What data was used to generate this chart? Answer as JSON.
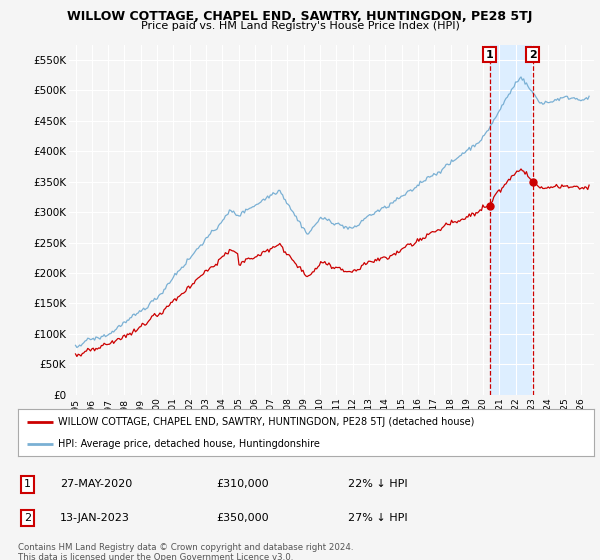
{
  "title": "WILLOW COTTAGE, CHAPEL END, SAWTRY, HUNTINGDON, PE28 5TJ",
  "subtitle": "Price paid vs. HM Land Registry's House Price Index (HPI)",
  "ylabel_ticks": [
    0,
    50000,
    100000,
    150000,
    200000,
    250000,
    300000,
    350000,
    400000,
    450000,
    500000,
    550000
  ],
  "ylim": [
    0,
    575000
  ],
  "background_color": "#f5f5f5",
  "plot_bg_color": "#f5f5f5",
  "red_line_color": "#cc0000",
  "blue_line_color": "#7ab0d4",
  "shade_color": "#ddeeff",
  "marker1_date": "27-MAY-2020",
  "marker1_price": 310000,
  "marker1_pct": "22% ↓ HPI",
  "marker1_x": 2020.41,
  "marker2_date": "13-JAN-2023",
  "marker2_price": 350000,
  "marker2_pct": "27% ↓ HPI",
  "marker2_x": 2023.04,
  "legend_label_red": "WILLOW COTTAGE, CHAPEL END, SAWTRY, HUNTINGDON, PE28 5TJ (detached house)",
  "legend_label_blue": "HPI: Average price, detached house, Huntingdonshire",
  "footer1": "Contains HM Land Registry data © Crown copyright and database right 2024.",
  "footer2": "This data is licensed under the Open Government Licence v3.0."
}
